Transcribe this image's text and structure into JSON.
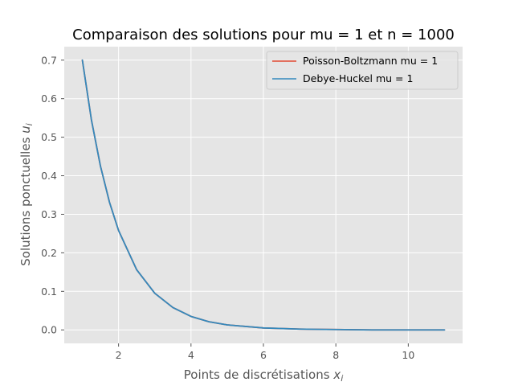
{
  "chart_data": {
    "type": "line",
    "title": "Comparaison des solutions pour mu = 1 et n = 1000",
    "xlabel": "Points de discrétisations",
    "xlabel_sub": "x",
    "xlabel_subscript": "i",
    "ylabel": "Solutions ponctuelles",
    "ylabel_sub": "u",
    "ylabel_subscript": "i",
    "xlim": [
      0.5,
      11.5
    ],
    "ylim": [
      -0.035,
      0.735
    ],
    "xticks": [
      2,
      4,
      6,
      8,
      10
    ],
    "xtick_labels": [
      "2",
      "4",
      "6",
      "8",
      "10"
    ],
    "yticks": [
      0.0,
      0.1,
      0.2,
      0.3,
      0.4,
      0.5,
      0.6,
      0.7
    ],
    "ytick_labels": [
      "0.0",
      "0.1",
      "0.2",
      "0.3",
      "0.4",
      "0.5",
      "0.6",
      "0.7"
    ],
    "grid": true,
    "legend_position": "top-right",
    "x": [
      1.0,
      1.25,
      1.5,
      1.75,
      2.0,
      2.5,
      3.0,
      3.5,
      4.0,
      4.5,
      5.0,
      6.0,
      7.0,
      8.0,
      9.0,
      10.0,
      11.0
    ],
    "series": [
      {
        "name": "Poisson-Boltzmann mu = 1",
        "color": "#E24A33",
        "values": [
          0.7,
          0.545,
          0.425,
          0.331,
          0.258,
          0.156,
          0.095,
          0.058,
          0.035,
          0.021,
          0.013,
          0.005,
          0.002,
          0.001,
          0.0,
          0.0,
          0.0
        ]
      },
      {
        "name": "Debye-Huckel mu = 1",
        "color": "#348ABD",
        "values": [
          0.7,
          0.545,
          0.425,
          0.331,
          0.258,
          0.156,
          0.095,
          0.058,
          0.035,
          0.021,
          0.013,
          0.005,
          0.002,
          0.001,
          0.0,
          0.0,
          0.0
        ]
      }
    ],
    "colors": {
      "plot_background": "#E5E5E5",
      "grid": "#FFFFFF",
      "text": "#555555"
    }
  }
}
